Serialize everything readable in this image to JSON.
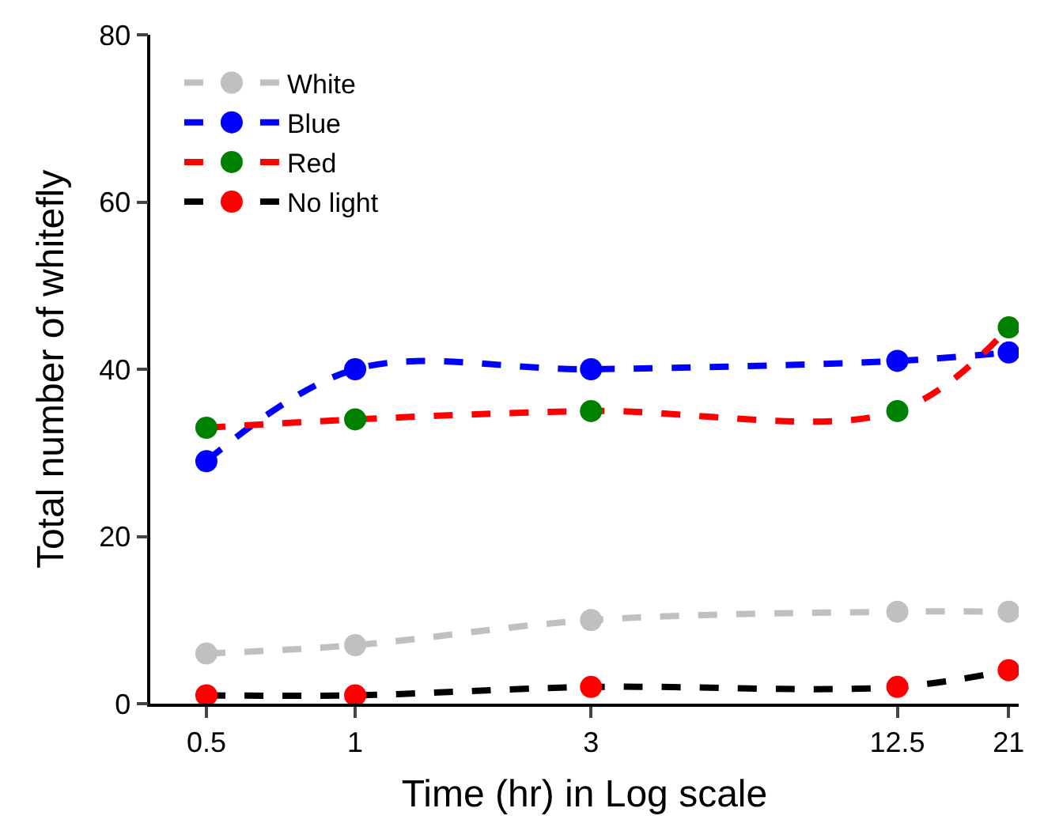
{
  "chart_data": {
    "type": "line",
    "xlabel": "Time (hr) in Log scale",
    "ylabel": "Total number of whitefly",
    "x": [
      0.5,
      1,
      3,
      12.5,
      21
    ],
    "log": "x",
    "xlim": [
      0.385,
      22
    ],
    "xticks": [
      0.5,
      1,
      3,
      12.5,
      21
    ],
    "ylim": [
      0,
      80
    ],
    "yticks": [
      0,
      20,
      40,
      60,
      80
    ],
    "legend": "top left",
    "marker": "circle",
    "line_style": "dashed",
    "series": [
      {
        "name": "White",
        "color": "#c0c0c0",
        "colors": [
          "#c0c0c0",
          "#c0c0c0",
          "#c0c0c0",
          "#c0c0c0",
          "#c0c0c0"
        ],
        "values": [
          6,
          7,
          10,
          11,
          11
        ]
      },
      {
        "name": "Blue",
        "color": "#0000ff",
        "colors": [
          "#0000ff",
          "#0000ff",
          "#0000ff",
          "#0000ff",
          "#0000ff"
        ],
        "values": [
          29,
          40,
          40,
          41,
          42
        ]
      },
      {
        "name": "Red",
        "color": "#ff0000",
        "colors": [
          "#008000",
          "#008000",
          "#008000",
          "#008000",
          "#008000"
        ],
        "values": [
          33,
          34,
          35,
          35,
          45
        ]
      },
      {
        "name": "No light",
        "color": "#000000",
        "colors": [
          "#ff0000",
          "#ff0000",
          "#ff0000",
          "#ff0000",
          "#ff0000"
        ],
        "values": [
          1,
          1,
          2,
          2,
          4
        ]
      }
    ]
  }
}
